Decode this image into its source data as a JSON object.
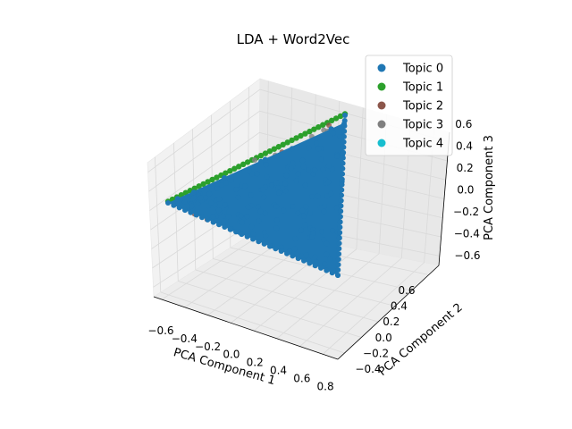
{
  "chart_data": {
    "type": "scatter3d",
    "title": "LDA + Word2Vec",
    "xlabel": "PCA Component 1",
    "ylabel": "PCA Component 2",
    "zlabel": "PCA Component 3",
    "xticks": [
      "−0.6",
      "−0.4",
      "−0.2",
      "0.0",
      "0.2",
      "0.4",
      "0.6",
      "0.8"
    ],
    "yticks": [
      "−0.4",
      "−0.2",
      "0.0",
      "0.2",
      "0.4",
      "0.6"
    ],
    "zticks": [
      "−0.6",
      "−0.4",
      "−0.2",
      "0.0",
      "0.2",
      "0.4",
      "0.6"
    ],
    "xlim": [
      -0.7,
      0.85
    ],
    "ylim": [
      -0.5,
      0.7
    ],
    "zlim": [
      -0.7,
      0.7
    ],
    "grid": true,
    "legend_position": "top-right",
    "series": [
      {
        "name": "Topic 0",
        "color": "#1f77b4"
      },
      {
        "name": "Topic 1",
        "color": "#2ca02c"
      },
      {
        "name": "Topic 2",
        "color": "#8c564b"
      },
      {
        "name": "Topic 3",
        "color": "#7f7f7f"
      },
      {
        "name": "Topic 4",
        "color": "#17becf"
      }
    ],
    "simplex_vertices": {
      "left": {
        "x": -0.65,
        "y": 0.1,
        "z": 0.05
      },
      "top": {
        "x": 0.25,
        "y": 0.65,
        "z": 0.65
      },
      "bottom": {
        "x": 0.55,
        "y": -0.3,
        "z": -0.6
      }
    }
  }
}
